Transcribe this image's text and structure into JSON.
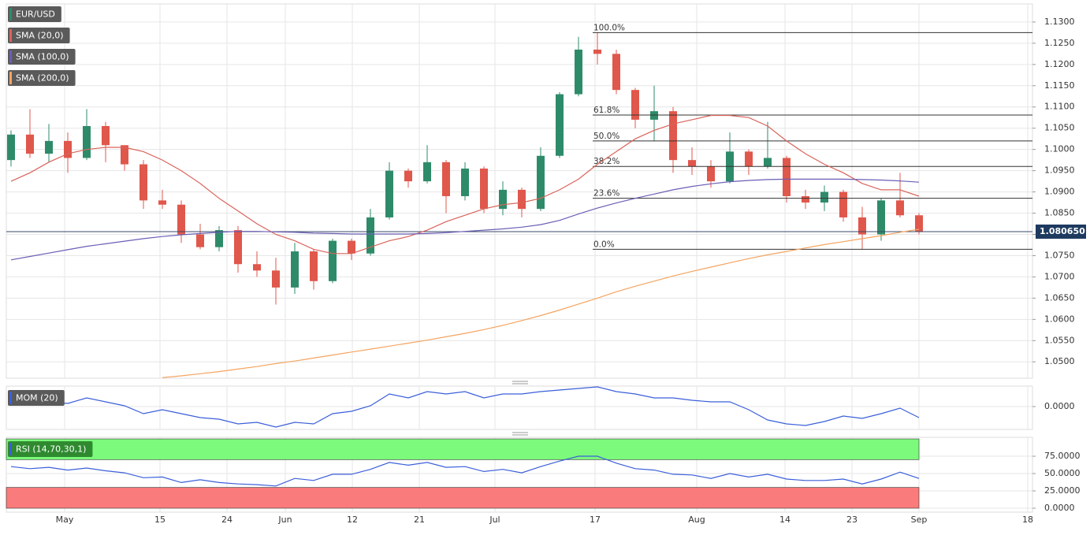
{
  "chart_data": [
    {
      "type": "candlestick",
      "candles": {
        "name": "EUR/USD",
        "up_color": "#2e8b6a",
        "down_color": "#e0574b",
        "open": [
          1.0975,
          1.1035,
          1.099,
          1.102,
          1.098,
          1.1055,
          1.101,
          1.0965,
          1.088,
          1.087,
          1.08,
          1.077,
          1.081,
          1.073,
          1.0715,
          1.0675,
          1.076,
          1.069,
          1.0785,
          1.0755,
          1.084,
          1.095,
          1.0925,
          1.097,
          1.089,
          1.0955,
          1.086,
          1.0905,
          1.086,
          1.0985,
          1.113,
          1.1235,
          1.1225,
          1.114,
          1.107,
          1.109,
          1.0975,
          1.096,
          1.0925,
          1.0995,
          1.096,
          1.098,
          1.089,
          1.0875,
          1.09,
          1.084,
          1.08,
          1.088,
          1.0845
        ],
        "high": [
          1.1045,
          1.1095,
          1.106,
          1.104,
          1.1095,
          1.1065,
          1.101,
          1.0975,
          1.0905,
          1.088,
          1.0825,
          1.082,
          1.082,
          1.076,
          1.0745,
          1.078,
          1.0765,
          1.079,
          1.079,
          1.086,
          1.097,
          1.0955,
          1.101,
          1.0975,
          1.097,
          1.096,
          1.0925,
          1.091,
          1.1005,
          1.1135,
          1.1265,
          1.1275,
          1.1235,
          1.1145,
          1.115,
          1.11,
          1.1005,
          1.0975,
          1.104,
          1.1,
          1.1065,
          1.0985,
          1.0905,
          1.0915,
          1.0905,
          1.0865,
          1.0885,
          1.0945,
          1.085
        ],
        "low": [
          1.096,
          1.098,
          1.097,
          1.0945,
          1.0975,
          1.097,
          1.095,
          1.086,
          1.086,
          1.078,
          1.0765,
          1.076,
          1.071,
          1.07,
          1.0635,
          1.066,
          1.067,
          1.0685,
          1.074,
          1.075,
          1.0835,
          1.091,
          1.092,
          1.085,
          1.088,
          1.085,
          1.0845,
          1.084,
          1.0855,
          1.098,
          1.1125,
          1.12,
          1.113,
          1.105,
          1.102,
          1.0945,
          1.094,
          1.091,
          1.092,
          1.094,
          1.0955,
          1.0875,
          1.086,
          1.0855,
          1.083,
          1.0765,
          1.0785,
          1.084,
          1.08
        ],
        "close": [
          1.1035,
          1.099,
          1.102,
          1.098,
          1.1055,
          1.101,
          1.0965,
          1.088,
          1.087,
          1.08,
          1.077,
          1.081,
          1.073,
          1.0715,
          1.0675,
          1.076,
          1.069,
          1.0785,
          1.0755,
          1.084,
          1.095,
          1.0925,
          1.097,
          1.089,
          1.0955,
          1.086,
          1.0905,
          1.086,
          1.0985,
          1.113,
          1.1235,
          1.1225,
          1.114,
          1.107,
          1.109,
          1.0975,
          1.096,
          1.0925,
          1.0995,
          1.096,
          1.098,
          1.089,
          1.0875,
          1.09,
          1.084,
          1.08,
          1.088,
          1.0845,
          1.0806
        ]
      },
      "series": [
        {
          "name": "SMA (20,0)",
          "color": "#d9635a",
          "values": [
            1.0925,
            1.0945,
            1.097,
            1.099,
            1.1,
            1.1005,
            1.1005,
            1.0995,
            1.0975,
            1.095,
            1.092,
            1.0885,
            1.0855,
            1.0825,
            1.08,
            1.0785,
            1.0765,
            1.0755,
            1.0755,
            1.077,
            1.0785,
            1.0795,
            1.081,
            1.083,
            1.0845,
            1.086,
            1.087,
            1.0875,
            1.0885,
            1.0905,
            1.093,
            1.0965,
            1.0995,
            1.1025,
            1.1045,
            1.106,
            1.107,
            1.108,
            1.108,
            1.1075,
            1.1055,
            1.102,
            1.099,
            1.0965,
            1.0945,
            1.092,
            1.0905,
            1.0905,
            1.089
          ]
        },
        {
          "name": "SMA (100,0)",
          "color": "#6a5fb5",
          "values": [
            1.074,
            1.0748,
            1.0756,
            1.0764,
            1.0772,
            1.0778,
            1.0784,
            1.079,
            1.0795,
            1.0799,
            1.0802,
            1.0805,
            1.0807,
            1.0807,
            1.0806,
            1.0805,
            1.0803,
            1.0802,
            1.0801,
            1.0801,
            1.0801,
            1.0801,
            1.0802,
            1.0804,
            1.0807,
            1.081,
            1.0813,
            1.0817,
            1.0823,
            1.0833,
            1.0848,
            1.0862,
            1.0874,
            1.0885,
            1.0895,
            1.0905,
            1.0913,
            1.0919,
            1.0924,
            1.0927,
            1.0929,
            1.093,
            1.093,
            1.093,
            1.093,
            1.0929,
            1.0928,
            1.0926,
            1.0923
          ]
        },
        {
          "name": "SMA (200,0)",
          "color": "#f4a460",
          "values": [
            null,
            null,
            null,
            null,
            null,
            null,
            null,
            null,
            1.0463,
            1.0467,
            1.0472,
            1.0477,
            1.0483,
            1.0489,
            1.0496,
            1.0502,
            1.0509,
            1.0516,
            1.0523,
            1.053,
            1.0537,
            1.0544,
            1.0551,
            1.0559,
            1.0567,
            1.0576,
            1.0586,
            1.0597,
            1.0609,
            1.0622,
            1.0636,
            1.065,
            1.0665,
            1.0678,
            1.069,
            1.0702,
            1.0713,
            1.0723,
            1.0733,
            1.0743,
            1.0752,
            1.076,
            1.0768,
            1.0776,
            1.0783,
            1.079,
            1.0797,
            1.0805,
            1.0812
          ]
        }
      ],
      "fibonacci": [
        {
          "label": "100.0%",
          "value": 1.1275
        },
        {
          "label": "61.8%",
          "value": 1.1081
        },
        {
          "label": "50.0%",
          "value": 1.102
        },
        {
          "label": "38.2%",
          "value": 1.096
        },
        {
          "label": "23.6%",
          "value": 1.0885
        },
        {
          "label": "0.0%",
          "value": 1.0765
        }
      ],
      "last_price": {
        "value": 1.08065,
        "label": "1.080650"
      },
      "xlim": [
        -0.25,
        54
      ],
      "xticks": [
        {
          "value": 2.833,
          "label": "May"
        },
        {
          "value": 7.875,
          "label": "15"
        },
        {
          "value": 11.417,
          "label": "24"
        },
        {
          "value": 14.5,
          "label": "Jun"
        },
        {
          "value": 18.042,
          "label": "12"
        },
        {
          "value": 21.583,
          "label": "21"
        },
        {
          "value": 25.583,
          "label": "Jul"
        },
        {
          "value": 30.875,
          "label": "17"
        },
        {
          "value": 36.25,
          "label": "Aug"
        },
        {
          "value": 40.917,
          "label": "14"
        },
        {
          "value": 44.458,
          "label": "23"
        },
        {
          "value": 48,
          "label": "Sep"
        },
        {
          "value": 53.75,
          "label": "18"
        }
      ],
      "ylim": [
        1.04615,
        1.13425
      ],
      "yticks": [
        {
          "value": 1.05,
          "label": "1.0500"
        },
        {
          "value": 1.055,
          "label": "1.0550"
        },
        {
          "value": 1.06,
          "label": "1.0600"
        },
        {
          "value": 1.065,
          "label": "1.0650"
        },
        {
          "value": 1.07,
          "label": "1.0700"
        },
        {
          "value": 1.075,
          "label": "1.0750"
        },
        {
          "value": 1.08,
          "label": "1.0800"
        },
        {
          "value": 1.085,
          "label": "1.0850"
        },
        {
          "value": 1.09,
          "label": "1.0900"
        },
        {
          "value": 1.095,
          "label": "1.0950"
        },
        {
          "value": 1.1,
          "label": "1.1000"
        },
        {
          "value": 1.105,
          "label": "1.1050"
        },
        {
          "value": 1.11,
          "label": "1.1100"
        },
        {
          "value": 1.115,
          "label": "1.1150"
        },
        {
          "value": 1.12,
          "label": "1.1200"
        },
        {
          "value": 1.125,
          "label": "1.1250"
        },
        {
          "value": 1.13,
          "label": "1.1300"
        }
      ],
      "grid": true
    },
    {
      "type": "line",
      "series": [
        {
          "name": "MOM (20)",
          "color": "#3b5fd9",
          "values": [
            0.016,
            0.019,
            0.006,
            0.004,
            0.011,
            0.006,
            0.001,
            -0.009,
            -0.004,
            -0.009,
            -0.014,
            -0.016,
            -0.022,
            -0.02,
            -0.026,
            -0.02,
            -0.022,
            -0.009,
            -0.006,
            0.001,
            0.016,
            0.011,
            0.019,
            0.016,
            0.019,
            0.011,
            0.016,
            0.016,
            0.019,
            0.021,
            0.023,
            0.025,
            0.019,
            0.016,
            0.011,
            0.011,
            0.008,
            0.006,
            0.006,
            -0.004,
            -0.017,
            -0.022,
            -0.024,
            -0.019,
            -0.012,
            -0.015,
            -0.009,
            -0.002,
            -0.014
          ]
        }
      ],
      "ylim": [
        -0.029,
        0.026
      ],
      "yticks": [
        {
          "value": 0,
          "label": "0.0000"
        }
      ],
      "grid": true
    },
    {
      "type": "line",
      "series": [
        {
          "name": "RSI (14,70,30,1)",
          "color": "#3b5fd9",
          "values": [
            60,
            57,
            59,
            55,
            58,
            54,
            51,
            44,
            45,
            37,
            41,
            37,
            35,
            34,
            32,
            43,
            40,
            49,
            49,
            56,
            66,
            62,
            66,
            59,
            60,
            53,
            56,
            51,
            60,
            68,
            75,
            75,
            65,
            57,
            55,
            49,
            48,
            43,
            50,
            45,
            49,
            42,
            40,
            40,
            42,
            35,
            42,
            52,
            43
          ]
        }
      ],
      "zones": [
        {
          "range": [
            70,
            100
          ],
          "color": "#7bfa7b"
        },
        {
          "range": [
            0,
            30
          ],
          "color": "#fa7b7b"
        }
      ],
      "ylim": [
        -5.7,
        102.3
      ],
      "yticks": [
        {
          "value": 75,
          "label": "75.0000"
        },
        {
          "value": 50,
          "label": "50.0000"
        },
        {
          "value": 25,
          "label": "25.0000"
        },
        {
          "value": 0,
          "label": "0.0000"
        }
      ],
      "grid": true
    }
  ]
}
